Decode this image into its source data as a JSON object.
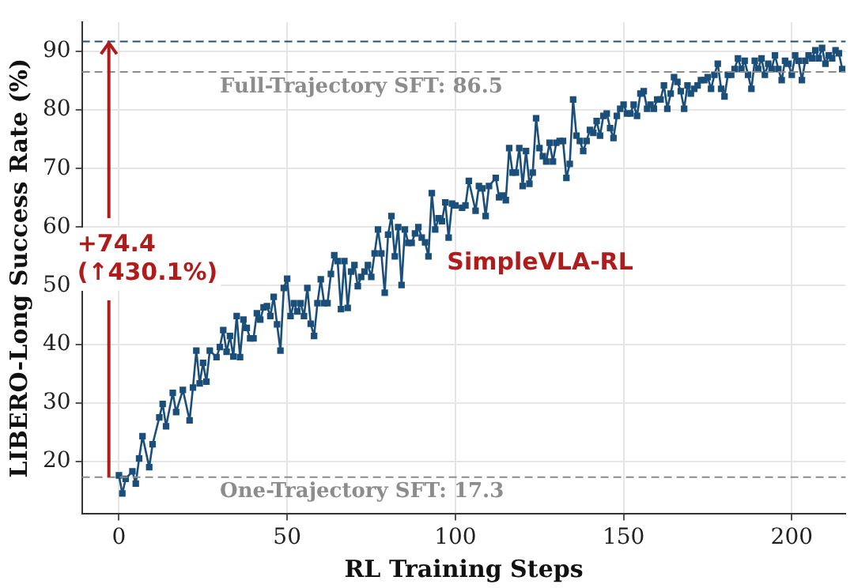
{
  "chart_data": {
    "type": "line",
    "xlabel": "RL Training Steps",
    "ylabel": "LIBERO-Long Success Rate (%)",
    "xlim": [
      -11,
      216
    ],
    "xticks": [
      0,
      50,
      100,
      150,
      200
    ],
    "ylim": [
      11,
      95
    ],
    "yticks": [
      20,
      30,
      40,
      50,
      60,
      70,
      80,
      90
    ],
    "grid": true,
    "marker": "square",
    "line_style": "solid",
    "legend": false,
    "series": [
      {
        "color": "#1b4f7a",
        "x": [
          0,
          1,
          2,
          4,
          5,
          6,
          7,
          9,
          10,
          12,
          13,
          14,
          16,
          17,
          19,
          21,
          22,
          23,
          24,
          25,
          26,
          27,
          29,
          30,
          31,
          32,
          33,
          34,
          35,
          36,
          37,
          38,
          39,
          40,
          41,
          42,
          43,
          44,
          45,
          46,
          47,
          48,
          49,
          50,
          51,
          52,
          53,
          54,
          55,
          56,
          57,
          58,
          59,
          60,
          61,
          62,
          63,
          64,
          65,
          66,
          67,
          68,
          69,
          70,
          71,
          72,
          73,
          74,
          75,
          76,
          77,
          78,
          79,
          80,
          81,
          82,
          83,
          84,
          85,
          86,
          87,
          88,
          89,
          90,
          91,
          92,
          93,
          94,
          95,
          96,
          97,
          98,
          99,
          100,
          102,
          103,
          104,
          106,
          107,
          108,
          109,
          110,
          112,
          113,
          114,
          115,
          116,
          117,
          118,
          119,
          120,
          121,
          122,
          123,
          124,
          125,
          126,
          127,
          128,
          129,
          130,
          131,
          132,
          133,
          134,
          135,
          136,
          137,
          138,
          139,
          140,
          141,
          142,
          143,
          144,
          145,
          146,
          147,
          148,
          149,
          150,
          151,
          152,
          153,
          154,
          155,
          156,
          157,
          158,
          159,
          160,
          161,
          162,
          163,
          164,
          165,
          166,
          167,
          168,
          169,
          170,
          171,
          172,
          173,
          174,
          175,
          176,
          177,
          178,
          179,
          180,
          181,
          182,
          183,
          184,
          185,
          186,
          187,
          188,
          189,
          190,
          191,
          192,
          193,
          194,
          195,
          196,
          197,
          198,
          199,
          200,
          201,
          202,
          203,
          204,
          205,
          206,
          207,
          208,
          209,
          210,
          211,
          212,
          213,
          214,
          215
        ],
        "values": [
          17.6,
          14.5,
          17,
          18.3,
          16.2,
          20.5,
          24.3,
          19,
          22.9,
          27.5,
          29.8,
          26,
          31.7,
          28.4,
          32.2,
          27,
          32.6,
          38.9,
          33.3,
          36.8,
          33.6,
          38.9,
          37.8,
          39.5,
          42.4,
          38.7,
          41.4,
          37.9,
          44.8,
          37.8,
          44.2,
          42.8,
          41,
          41,
          45.3,
          44.2,
          46.3,
          46.5,
          44.8,
          48.1,
          43.4,
          38.9,
          49.6,
          51.2,
          44.8,
          47,
          45.6,
          47,
          44.8,
          49.6,
          43.5,
          41.4,
          47,
          51.1,
          47,
          47,
          52,
          55.2,
          54.2,
          46,
          54.2,
          46.2,
          52.4,
          53.5,
          49.9,
          51.5,
          52.4,
          53.5,
          51.5,
          55.5,
          59.6,
          55.5,
          48.8,
          58.7,
          61.9,
          55,
          60,
          50.1,
          59.6,
          57.3,
          57.3,
          58.9,
          60,
          58.2,
          57.4,
          55,
          65.8,
          59.6,
          61.5,
          61,
          64.2,
          58.2,
          64,
          63.7,
          63.3,
          63.7,
          67.9,
          62.8,
          67,
          66.6,
          61.9,
          67,
          68.4,
          65.1,
          65.4,
          64.6,
          73.5,
          69.3,
          69.3,
          73.5,
          67,
          73,
          67.4,
          69.3,
          78.6,
          73.5,
          72.1,
          71.2,
          74.4,
          71.2,
          74.4,
          74.7,
          74.7,
          68.4,
          70.8,
          81.8,
          75.6,
          74.7,
          73,
          74.7,
          76.6,
          76.1,
          78.1,
          75.6,
          79,
          79.4,
          76.9,
          75.2,
          79,
          80.2,
          80.9,
          79.4,
          79.4,
          80.9,
          79,
          82.8,
          83.2,
          80.2,
          80.9,
          80.2,
          81.8,
          81.8,
          84.2,
          80.2,
          82.8,
          85.6,
          84.8,
          83.2,
          80.2,
          84.2,
          82.8,
          83.6,
          84.2,
          85.1,
          85.1,
          85.6,
          83.6,
          86,
          87.9,
          83.6,
          82.3,
          86,
          86,
          87,
          88.8,
          87,
          88.4,
          86,
          83.6,
          88.4,
          87,
          88.8,
          86,
          87.9,
          87,
          89.3,
          87,
          85.1,
          88.4,
          87.9,
          86,
          89.3,
          88.4,
          85.1,
          88.4,
          89.3,
          88.8,
          90.2,
          88.8,
          90.6,
          87.9,
          89.3,
          88.8,
          90.2,
          89.7,
          87
        ]
      }
    ],
    "ref_lines": [
      {
        "axis": "y",
        "value": 91.7,
        "color": "#1f4e79",
        "line_style": "dashed"
      },
      {
        "axis": "y",
        "value": 86.5,
        "label": "Full-Trajectory SFT: 86.5",
        "color": "#8c8c8c",
        "line_style": "dashed"
      },
      {
        "axis": "y",
        "value": 17.3,
        "label": "One-Trajectory SFT: 17.3",
        "color": "#8c8c8c",
        "line_style": "dashed"
      }
    ],
    "annotations": [
      {
        "text": "+74.4\n(↑430.1%)",
        "x": -3,
        "y": 91.7
      },
      "SimpleVLA-RL"
    ]
  }
}
